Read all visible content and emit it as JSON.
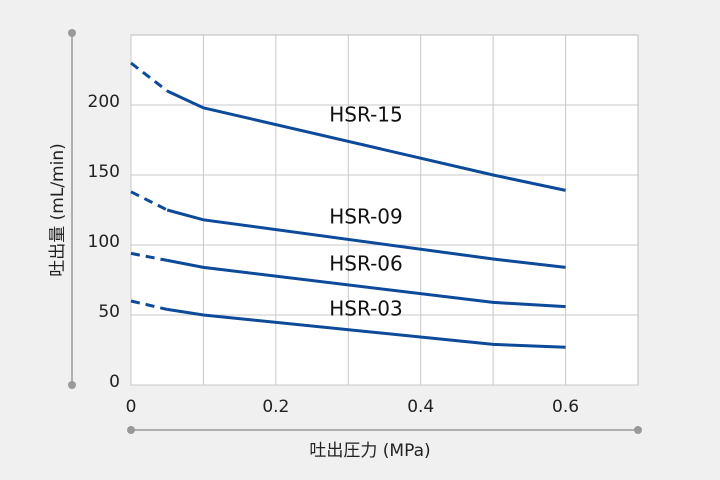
{
  "chart_data": {
    "type": "line",
    "x_axis_label": "吐出圧力 (MPa)",
    "y_axis_label": "吐出量 (mL/min)",
    "x": [
      0,
      0.05,
      0.1,
      0.5,
      0.6
    ],
    "series": [
      {
        "name": "HSR-15",
        "color": "#0d4a9a",
        "values": [
          230,
          210,
          198,
          150,
          139
        ]
      },
      {
        "name": "HSR-09",
        "color": "#0d4a9a",
        "values": [
          138,
          125,
          118,
          90,
          84
        ]
      },
      {
        "name": "HSR-06",
        "color": "#0d4a9a",
        "values": [
          94,
          89,
          84,
          59,
          56
        ]
      },
      {
        "name": "HSR-03",
        "color": "#0d4a9a",
        "values": [
          60,
          54,
          50,
          29,
          27
        ]
      }
    ],
    "dashed_until_x": 0.05,
    "xlim": [
      0,
      0.7
    ],
    "xticks": [
      0,
      0.2,
      0.4,
      0.6
    ],
    "xgrid": [
      0.1,
      0.3,
      0.5
    ],
    "ylim": [
      0,
      250
    ],
    "yticks": [
      0,
      50,
      100,
      150,
      200
    ],
    "grid": true
  }
}
